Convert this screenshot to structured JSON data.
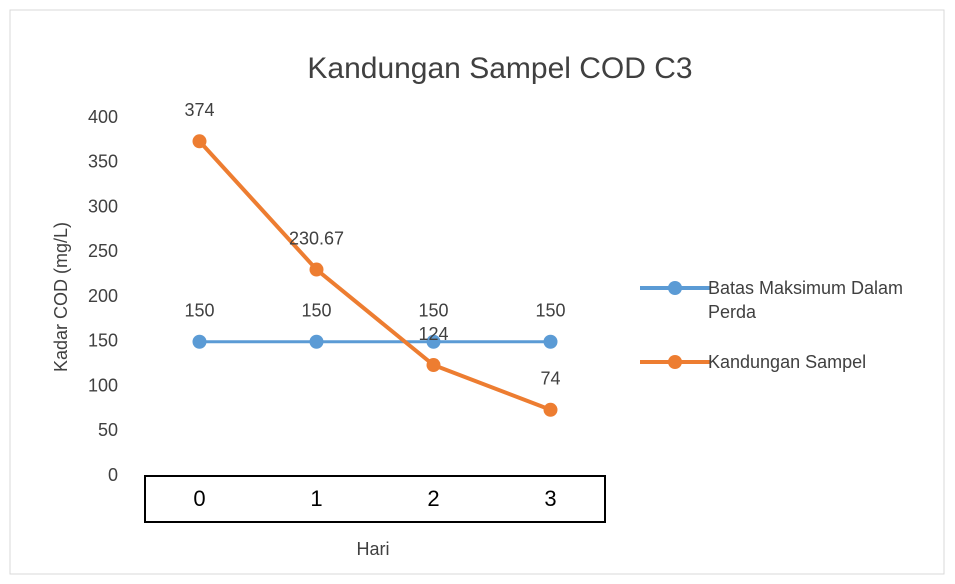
{
  "chart_data": {
    "type": "line",
    "title": "Kandungan Sampel COD C3",
    "x_label": "Hari",
    "y_label": "Kadar COD (mg/L)",
    "categories": [
      "0",
      "1",
      "2",
      "3"
    ],
    "series": [
      {
        "name": "Batas Maksimum Dalam Perda",
        "color": "#5b9bd5",
        "values": [
          150,
          150,
          150,
          150
        ]
      },
      {
        "name": "Kandungan Sampel",
        "color": "#ed7d31",
        "values": [
          374,
          230.67,
          124,
          74
        ]
      }
    ],
    "ylim": [
      0,
      400
    ],
    "yticks": [
      0,
      50,
      100,
      150,
      200,
      250,
      300,
      350,
      400
    ],
    "grid": false,
    "legend": "right"
  }
}
